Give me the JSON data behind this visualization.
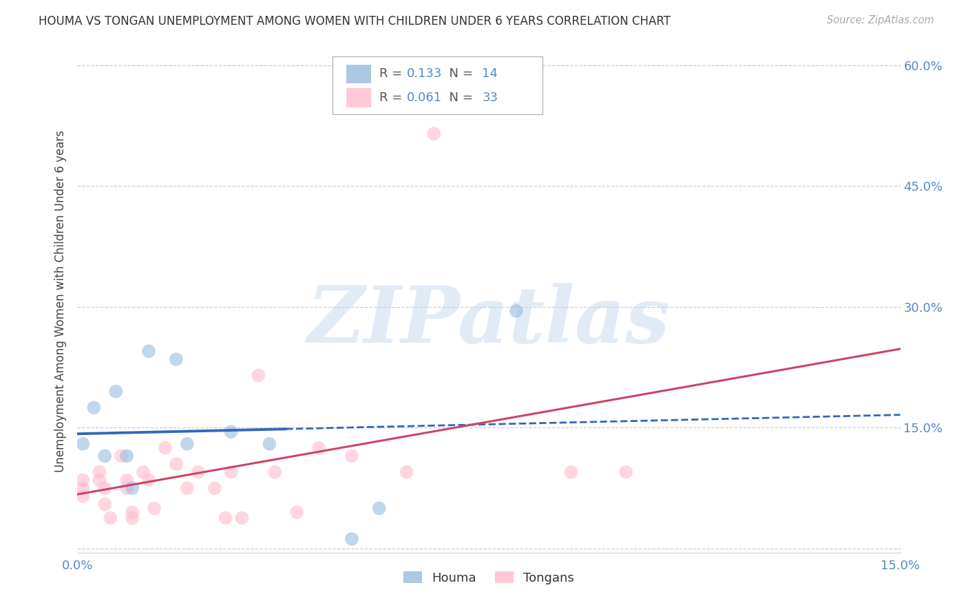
{
  "title": "HOUMA VS TONGAN UNEMPLOYMENT AMONG WOMEN WITH CHILDREN UNDER 6 YEARS CORRELATION CHART",
  "source": "Source: ZipAtlas.com",
  "ylabel": "Unemployment Among Women with Children Under 6 years",
  "xlim": [
    0.0,
    0.15
  ],
  "ylim": [
    -0.005,
    0.62
  ],
  "houma_color": "#99bbdd",
  "tongan_color": "#ffbbcc",
  "houma_line_color": "#3366bb",
  "tongan_line_color": "#cc4466",
  "houma_R": 0.133,
  "houma_N": 14,
  "tongan_R": 0.061,
  "tongan_N": 33,
  "houma_x": [
    0.001,
    0.003,
    0.005,
    0.007,
    0.009,
    0.01,
    0.013,
    0.018,
    0.02,
    0.028,
    0.035,
    0.05,
    0.055,
    0.08
  ],
  "houma_y": [
    0.13,
    0.175,
    0.115,
    0.195,
    0.115,
    0.075,
    0.245,
    0.235,
    0.13,
    0.145,
    0.13,
    0.012,
    0.05,
    0.295
  ],
  "tongan_x": [
    0.001,
    0.001,
    0.001,
    0.004,
    0.004,
    0.005,
    0.005,
    0.006,
    0.008,
    0.009,
    0.009,
    0.01,
    0.01,
    0.012,
    0.013,
    0.014,
    0.016,
    0.018,
    0.02,
    0.022,
    0.025,
    0.027,
    0.028,
    0.03,
    0.033,
    0.036,
    0.04,
    0.044,
    0.05,
    0.06,
    0.065,
    0.09,
    0.1
  ],
  "tongan_y": [
    0.085,
    0.075,
    0.065,
    0.095,
    0.085,
    0.075,
    0.055,
    0.038,
    0.115,
    0.085,
    0.075,
    0.045,
    0.038,
    0.095,
    0.085,
    0.05,
    0.125,
    0.105,
    0.075,
    0.095,
    0.075,
    0.038,
    0.095,
    0.038,
    0.215,
    0.095,
    0.045,
    0.125,
    0.115,
    0.095,
    0.515,
    0.095,
    0.095
  ],
  "watermark": "ZIPatlas",
  "bg_color": "#ffffff",
  "grid_color": "#cccccc",
  "ytick_positions": [
    0.0,
    0.15,
    0.3,
    0.45,
    0.6
  ],
  "xtick_positions": [
    0.0,
    0.15
  ],
  "tick_label_color": "#5588cc",
  "legend_text_color": "#5588cc"
}
